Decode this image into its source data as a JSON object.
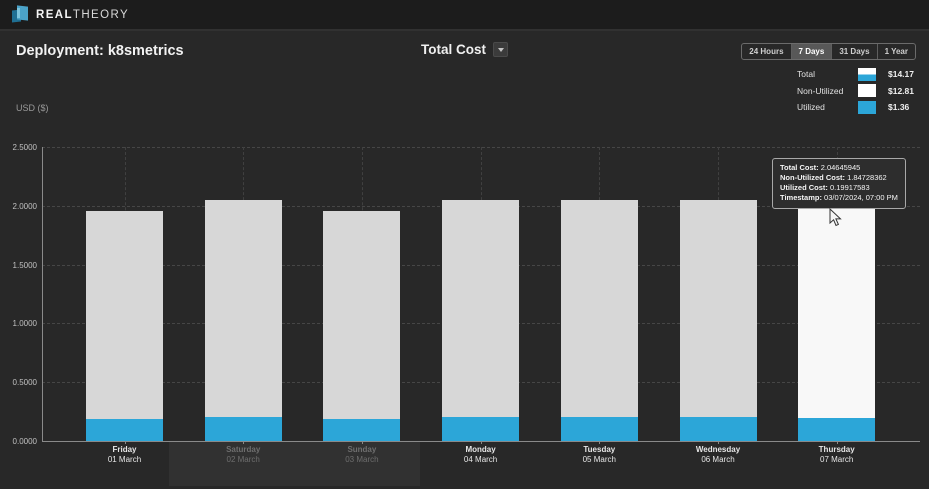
{
  "topbar": {
    "brand_bold": "REAL",
    "brand_light": "THEORY"
  },
  "header": {
    "title": "Deployment: k8smetrics",
    "metric_label": "Total Cost",
    "time_ranges": [
      {
        "label": "24 Hours",
        "selected": false
      },
      {
        "label": "7 Days",
        "selected": true
      },
      {
        "label": "31 Days",
        "selected": false
      },
      {
        "label": "1 Year",
        "selected": false
      }
    ]
  },
  "legend": {
    "items": [
      {
        "label": "Total",
        "value": "$14.17",
        "swatch": "split"
      },
      {
        "label": "Non-Utilized",
        "value": "$12.81",
        "swatch": "non_utilized"
      },
      {
        "label": "Utilized",
        "value": "$1.36",
        "swatch": "utilized"
      }
    ]
  },
  "tooltip": {
    "rows": [
      {
        "label": "Total Cost:",
        "value": "2.04645945"
      },
      {
        "label": "Non-Utilized Cost:",
        "value": "1.84728362"
      },
      {
        "label": "Utilized Cost:",
        "value": "0.19917583"
      },
      {
        "label": "Timestamp:",
        "value": "03/07/2024, 07:00 PM"
      }
    ]
  },
  "colors": {
    "utilized": "#2ca6d8",
    "non_utilized": "#d7d7d7",
    "hover_bar": "#f8f8f8",
    "weekday_label": "#e6e6e6",
    "weekend_label": "#6e6e6e",
    "accent": "#2ca6d8"
  },
  "chart_data": {
    "type": "bar",
    "stacked": true,
    "title": "Total Cost",
    "ylabel": "USD ($)",
    "ylim": [
      0,
      2.5
    ],
    "ytick_step": 0.5,
    "grid": true,
    "legend_position": "top-right",
    "hovered_index": 6,
    "categories": [
      {
        "day": "Friday",
        "date": "01 March",
        "weekend": false
      },
      {
        "day": "Saturday",
        "date": "02 March",
        "weekend": true
      },
      {
        "day": "Sunday",
        "date": "03 March",
        "weekend": true
      },
      {
        "day": "Monday",
        "date": "04 March",
        "weekend": false
      },
      {
        "day": "Tuesday",
        "date": "05 March",
        "weekend": false
      },
      {
        "day": "Wednesday",
        "date": "06 March",
        "weekend": false
      },
      {
        "day": "Thursday",
        "date": "07 March",
        "weekend": false
      }
    ],
    "series": [
      {
        "name": "Non-Utilized",
        "values": [
          1.77,
          1.85,
          1.77,
          1.85,
          1.85,
          1.85,
          1.84728362
        ]
      },
      {
        "name": "Utilized",
        "values": [
          0.19,
          0.2,
          0.19,
          0.2,
          0.2,
          0.2,
          0.19917583
        ]
      }
    ],
    "totals": [
      1.96,
      2.05,
      1.96,
      2.05,
      2.05,
      2.05,
      2.04645945
    ]
  }
}
